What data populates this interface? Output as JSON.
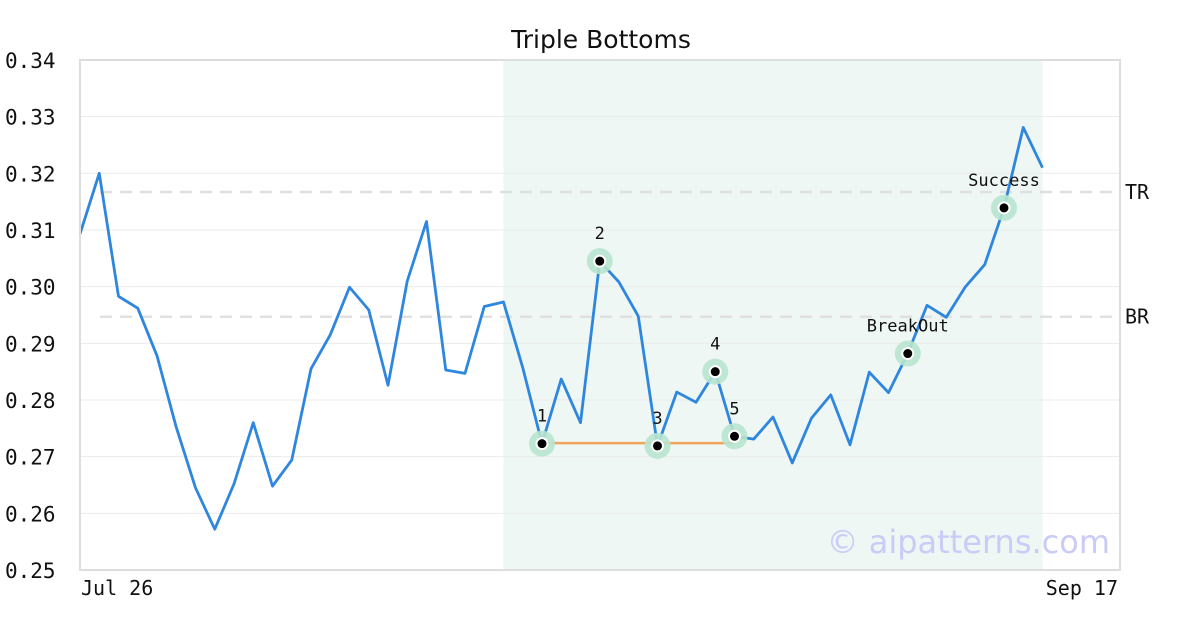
{
  "chart_data": {
    "type": "line",
    "title": "Triple Bottoms",
    "xlabel": "",
    "ylabel": "",
    "ylim": [
      0.25,
      0.34
    ],
    "yticks": [
      "0.25",
      "0.26",
      "0.27",
      "0.28",
      "0.29",
      "0.30",
      "0.31",
      "0.32",
      "0.33",
      "0.34"
    ],
    "x_labels": {
      "start": "Jul 26",
      "end": "Sep 17"
    },
    "grid": true,
    "series": [
      {
        "values": [
          0.3093,
          0.32,
          0.2983,
          0.2962,
          0.2878,
          0.2752,
          0.2645,
          0.2572,
          0.2652,
          0.276,
          0.2648,
          0.2694,
          0.2855,
          0.2915,
          0.2999,
          0.2959,
          0.2826,
          0.301,
          0.3115,
          0.2853,
          0.2847,
          0.2965,
          0.2973,
          0.2857,
          0.2723,
          0.2837,
          0.276,
          0.3045,
          0.3008,
          0.2948,
          0.2719,
          0.2814,
          0.2796,
          0.285,
          0.2736,
          0.2731,
          0.277,
          0.2689,
          0.2768,
          0.2809,
          0.2721,
          0.2849,
          0.2813,
          0.2882,
          0.2967,
          0.2946,
          0.3,
          0.3039,
          0.3139,
          0.3281,
          0.321
        ],
        "color": "#2e86de"
      }
    ],
    "pattern_region": {
      "start_index": 22,
      "end_index": 50,
      "color": "#eef7f3"
    },
    "support_line": {
      "start_index": 24,
      "end_index": 34,
      "value": 0.2724,
      "color": "#f0a55b"
    },
    "levels": [
      {
        "label": "TR",
        "value": 0.3167
      },
      {
        "label": "BR",
        "value": 0.2947
      }
    ],
    "points": [
      {
        "label": "1",
        "index": 24,
        "value": 0.2723
      },
      {
        "label": "2",
        "index": 27,
        "value": 0.3045
      },
      {
        "label": "3",
        "index": 30,
        "value": 0.2719
      },
      {
        "label": "4",
        "index": 33,
        "value": 0.285
      },
      {
        "label": "5",
        "index": 34,
        "value": 0.2736
      },
      {
        "label": "BreakOut",
        "index": 43,
        "value": 0.2882
      },
      {
        "label": "Success",
        "index": 48,
        "value": 0.3139
      }
    ],
    "watermark": "© aipatterns.com"
  }
}
